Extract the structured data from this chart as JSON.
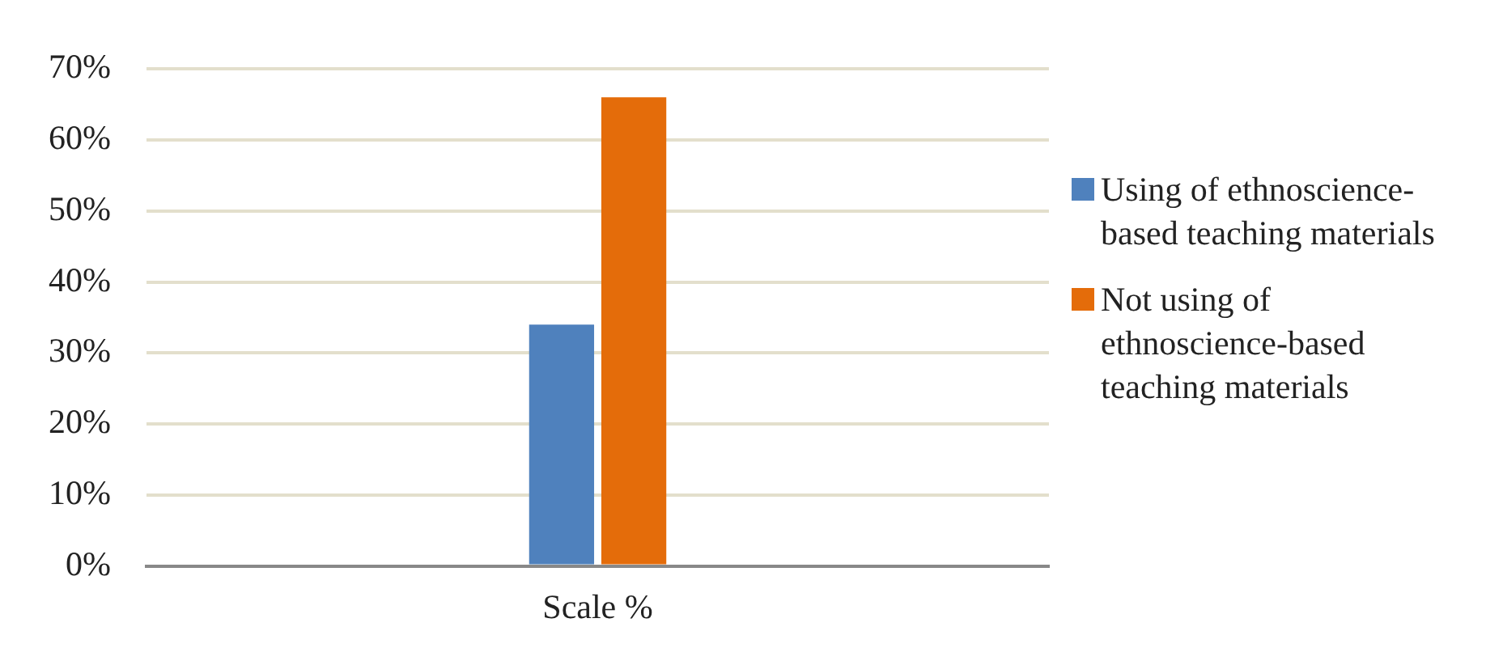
{
  "chart_data": {
    "type": "bar",
    "categories": [
      "Scale %"
    ],
    "series": [
      {
        "name": "Using of ethnoscience-based teaching materials",
        "color": "#4f81bd",
        "values": [
          34
        ]
      },
      {
        "name": "Not using of ethnoscience-based teaching materials",
        "color": "#e46c0a",
        "values": [
          66
        ]
      }
    ],
    "ylim": [
      0,
      70
    ],
    "yticks": [
      {
        "value": 0,
        "label": "0%"
      },
      {
        "value": 10,
        "label": "10%"
      },
      {
        "value": 20,
        "label": "20%"
      },
      {
        "value": 30,
        "label": "30%"
      },
      {
        "value": 40,
        "label": "40%"
      },
      {
        "value": 50,
        "label": "50%"
      },
      {
        "value": 60,
        "label": "60%"
      },
      {
        "value": 70,
        "label": "70%"
      }
    ],
    "grid": "y",
    "legend": "right"
  }
}
